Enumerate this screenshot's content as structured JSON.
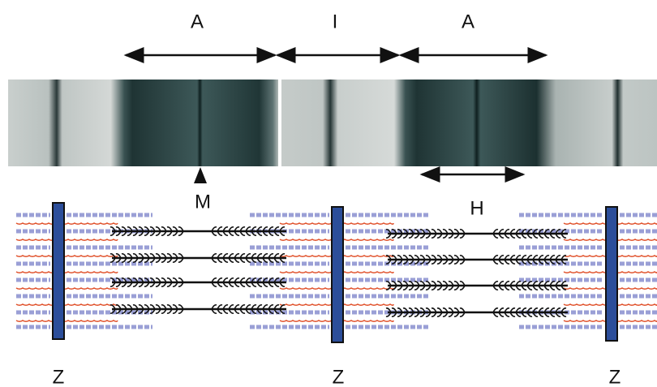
{
  "bands": {
    "a_left": "A",
    "i": "I",
    "a_right": "A"
  },
  "m_line": "M",
  "h_zone": "H",
  "z_discs": [
    "Z",
    "Z",
    "Z"
  ]
}
